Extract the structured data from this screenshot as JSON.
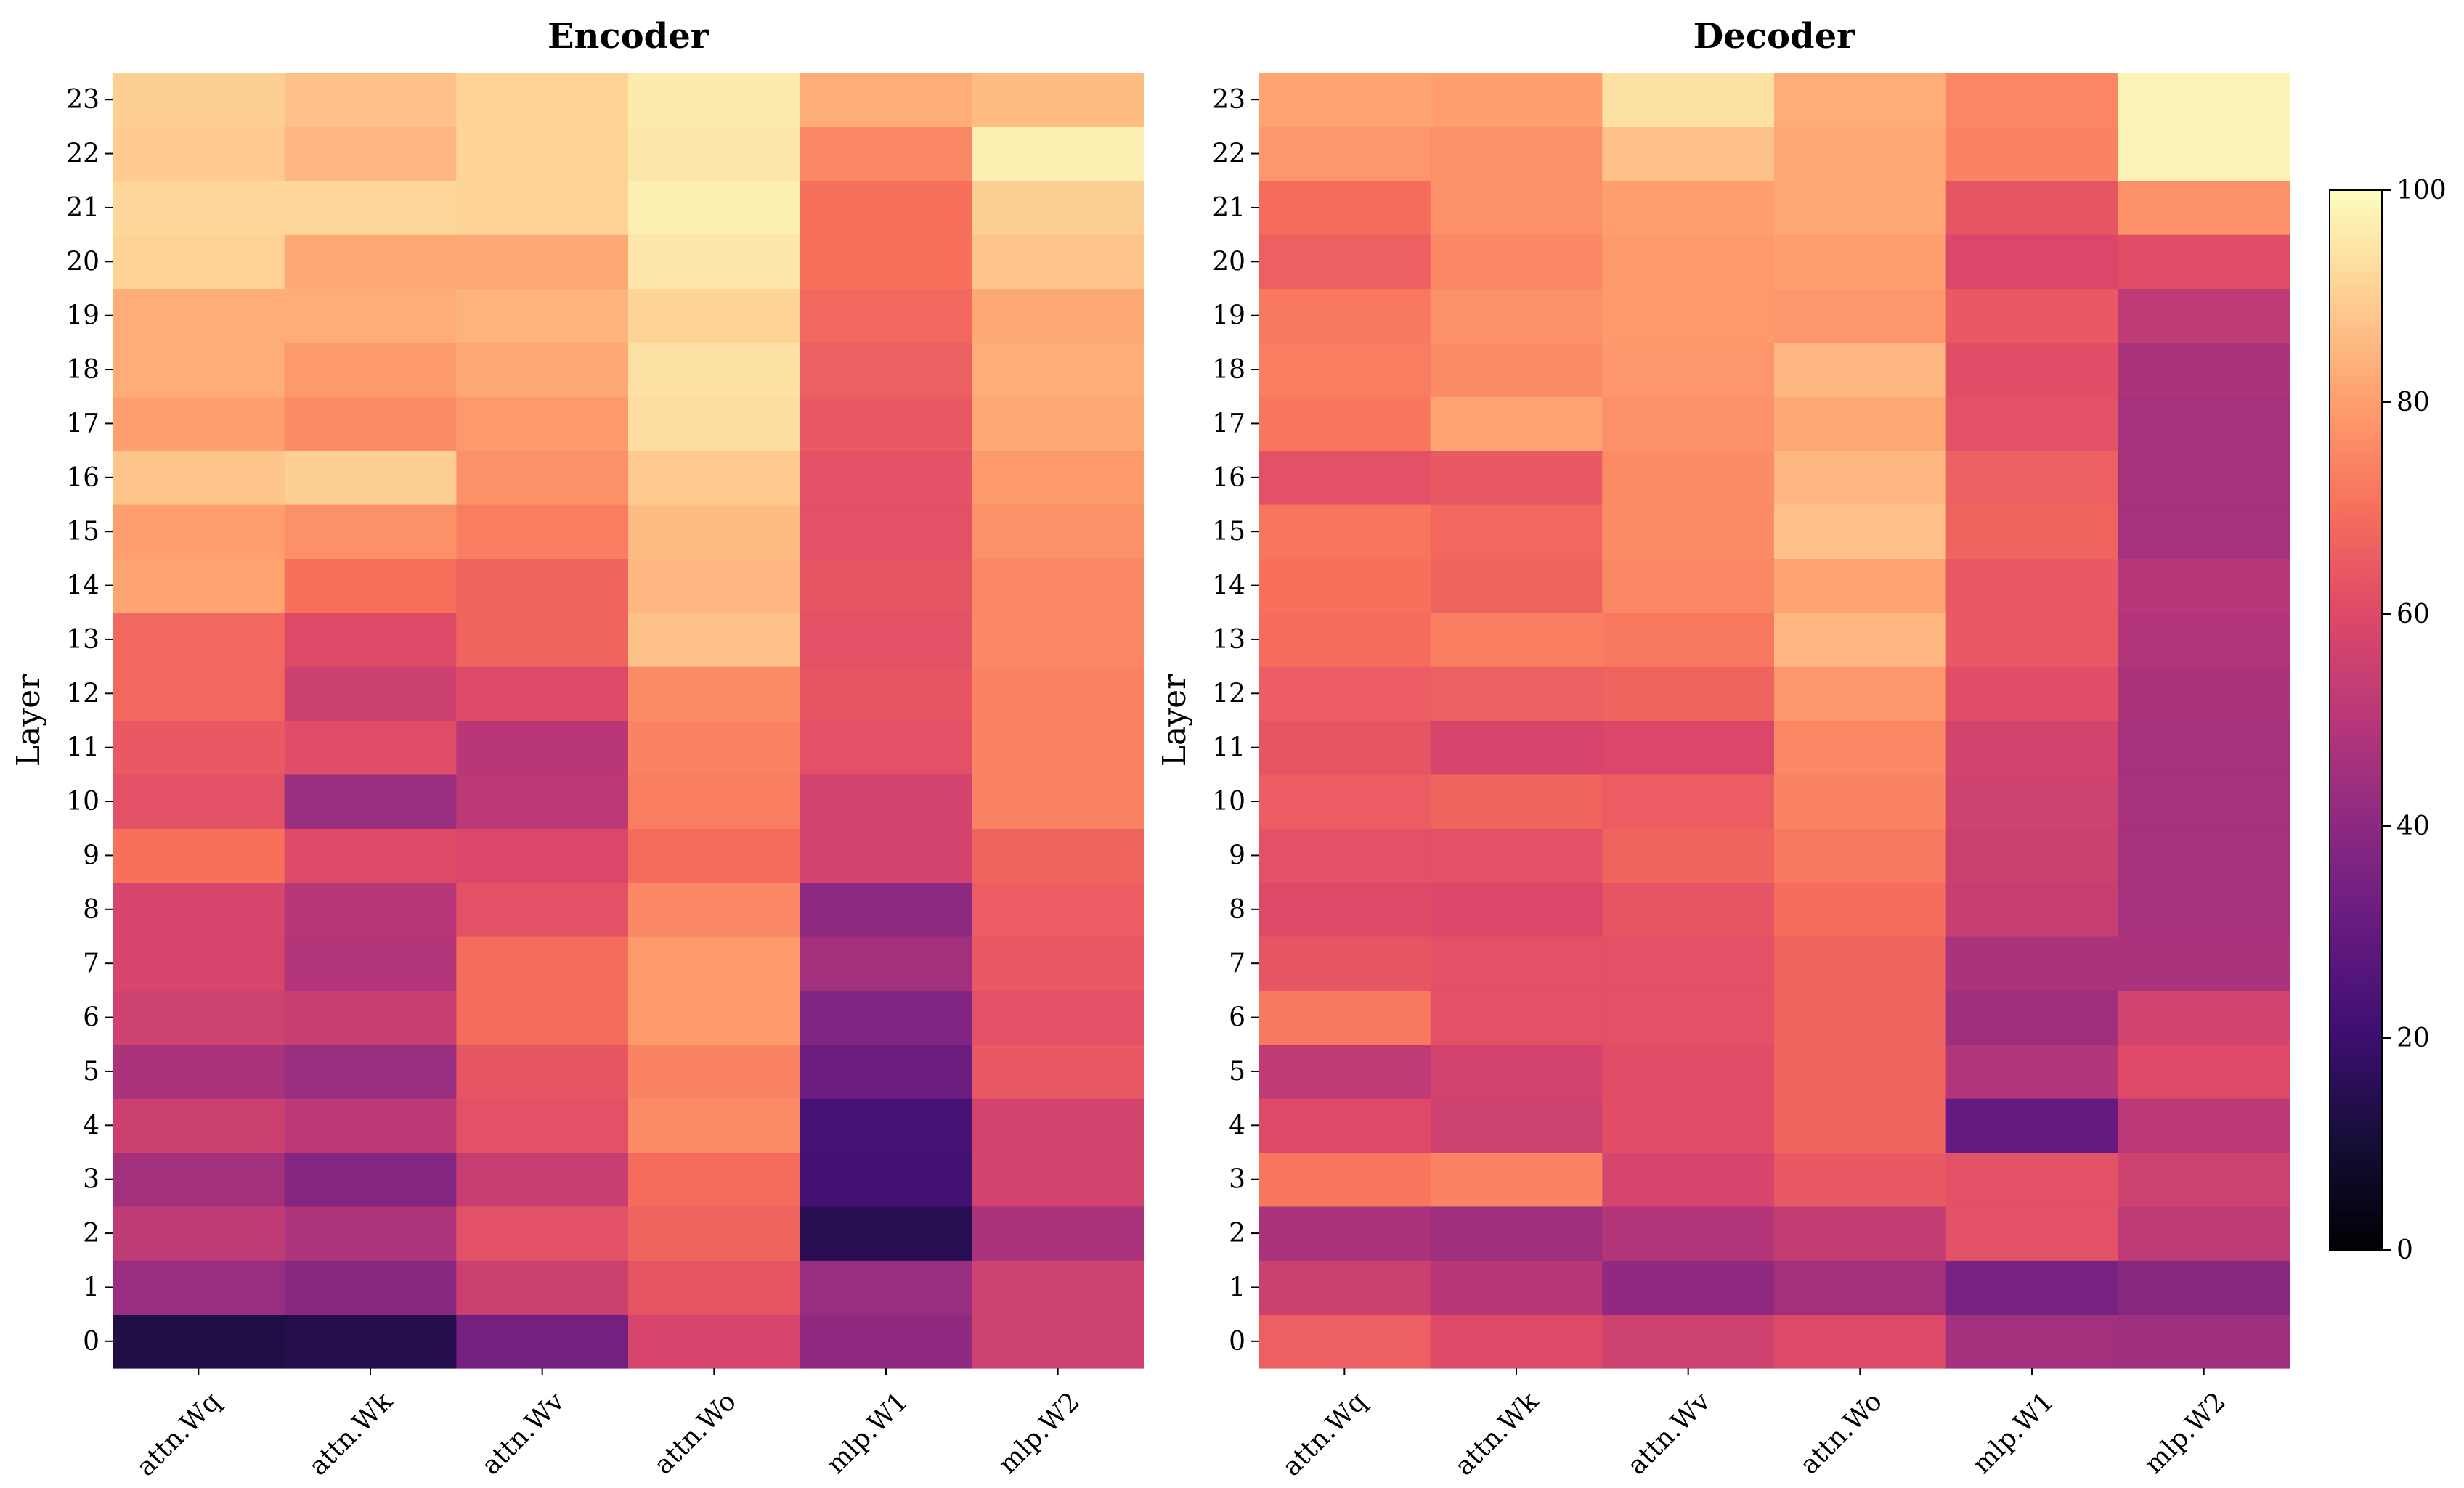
{
  "chart_data": [
    {
      "type": "heatmap",
      "title": "Encoder",
      "ylabel": "Layer",
      "x_categories": [
        "attn.Wq",
        "attn.Wk",
        "attn.Wv",
        "attn.Wo",
        "mlp.W1",
        "mlp.W2"
      ],
      "y_categories": [
        "0",
        "1",
        "2",
        "3",
        "4",
        "5",
        "6",
        "7",
        "8",
        "9",
        "10",
        "11",
        "12",
        "13",
        "14",
        "15",
        "16",
        "17",
        "18",
        "19",
        "20",
        "21",
        "22",
        "23"
      ],
      "values": [
        [
          13,
          14,
          34,
          58,
          41,
          56
        ],
        [
          43,
          39,
          55,
          63,
          43,
          56
        ],
        [
          52,
          48,
          62,
          67,
          15,
          47
        ],
        [
          45,
          38,
          54,
          69,
          22,
          57
        ],
        [
          55,
          51,
          62,
          76,
          23,
          57
        ],
        [
          47,
          43,
          63,
          74,
          32,
          64
        ],
        [
          56,
          54,
          69,
          79,
          37,
          62
        ],
        [
          58,
          49,
          69,
          79,
          45,
          64
        ],
        [
          58,
          50,
          62,
          75,
          40,
          65
        ],
        [
          70,
          60,
          59,
          69,
          57,
          67
        ],
        [
          62,
          43,
          51,
          73,
          57,
          74
        ],
        [
          64,
          61,
          50,
          74,
          62,
          74
        ],
        [
          68,
          55,
          60,
          76,
          63,
          74
        ],
        [
          68,
          60,
          67,
          87,
          62,
          75
        ],
        [
          81,
          70,
          67,
          85,
          63,
          75
        ],
        [
          80,
          77,
          73,
          86,
          62,
          77
        ],
        [
          88,
          90,
          77,
          89,
          62,
          79
        ],
        [
          80,
          76,
          79,
          93,
          64,
          82
        ],
        [
          83,
          79,
          82,
          94,
          66,
          83
        ],
        [
          83,
          83,
          84,
          91,
          68,
          82
        ],
        [
          91,
          82,
          82,
          95,
          70,
          88
        ],
        [
          92,
          92,
          91,
          97,
          70,
          90
        ],
        [
          89,
          85,
          91,
          95,
          75,
          97
        ],
        [
          90,
          87,
          91,
          96,
          83,
          86
        ]
      ],
      "vmin": 0,
      "vmax": 100,
      "colormap": "magma"
    },
    {
      "type": "heatmap",
      "title": "Decoder",
      "ylabel": "Layer",
      "x_categories": [
        "attn.Wq",
        "attn.Wk",
        "attn.Wv",
        "attn.Wo",
        "mlp.W1",
        "mlp.W2"
      ],
      "y_categories": [
        "0",
        "1",
        "2",
        "3",
        "4",
        "5",
        "6",
        "7",
        "8",
        "9",
        "10",
        "11",
        "12",
        "13",
        "14",
        "15",
        "16",
        "17",
        "18",
        "19",
        "20",
        "21",
        "22",
        "23"
      ],
      "values": [
        [
          66,
          60,
          56,
          60,
          45,
          44
        ],
        [
          55,
          50,
          41,
          45,
          35,
          39
        ],
        [
          47,
          44,
          49,
          53,
          62,
          52
        ],
        [
          71,
          74,
          58,
          64,
          62,
          56
        ],
        [
          60,
          56,
          61,
          67,
          30,
          51
        ],
        [
          52,
          57,
          61,
          67,
          49,
          60
        ],
        [
          72,
          62,
          62,
          67,
          44,
          57
        ],
        [
          63,
          62,
          62,
          67,
          47,
          47
        ],
        [
          60,
          59,
          63,
          69,
          54,
          46
        ],
        [
          62,
          62,
          67,
          72,
          55,
          46
        ],
        [
          65,
          67,
          65,
          74,
          56,
          46
        ],
        [
          63,
          58,
          59,
          75,
          57,
          46
        ],
        [
          65,
          66,
          67,
          78,
          61,
          47
        ],
        [
          69,
          73,
          72,
          85,
          64,
          49
        ],
        [
          70,
          67,
          75,
          81,
          64,
          50
        ],
        [
          71,
          68,
          76,
          87,
          67,
          46
        ],
        [
          62,
          64,
          76,
          85,
          66,
          46
        ],
        [
          71,
          81,
          77,
          82,
          62,
          46
        ],
        [
          73,
          76,
          78,
          85,
          61,
          47
        ],
        [
          72,
          77,
          79,
          78,
          64,
          52
        ],
        [
          66,
          75,
          79,
          80,
          59,
          61
        ],
        [
          69,
          77,
          80,
          82,
          63,
          77
        ],
        [
          78,
          77,
          87,
          82,
          74,
          98
        ],
        [
          81,
          80,
          94,
          83,
          75,
          98
        ]
      ],
      "vmin": 0,
      "vmax": 100,
      "colormap": "magma"
    }
  ],
  "colorbar": {
    "ticks": [
      "0",
      "20",
      "40",
      "60",
      "80",
      "100"
    ],
    "colormap": "magma"
  }
}
